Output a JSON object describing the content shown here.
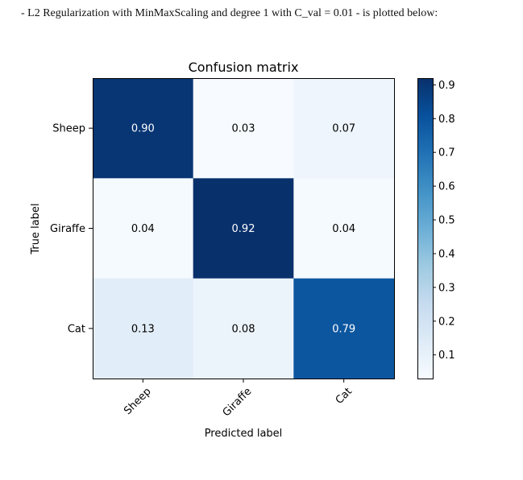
{
  "caption": "- L2 Regularization with MinMaxScaling and degree 1 with C_val = 0.01 - is plotted below:",
  "chart_data": {
    "type": "heatmap",
    "title": "Confusion matrix",
    "xlabel": "Predicted label",
    "ylabel": "True label",
    "x_categories": [
      "Sheep",
      "Giraffe",
      "Cat"
    ],
    "y_categories": [
      "Sheep",
      "Giraffe",
      "Cat"
    ],
    "values": [
      [
        0.9,
        0.03,
        0.07
      ],
      [
        0.04,
        0.92,
        0.04
      ],
      [
        0.13,
        0.08,
        0.79
      ]
    ],
    "cell_labels": [
      [
        "0.90",
        "0.03",
        "0.07"
      ],
      [
        "0.04",
        "0.92",
        "0.04"
      ],
      [
        "0.13",
        "0.08",
        "0.79"
      ]
    ],
    "colormap": "Blues",
    "colorbar": {
      "range": [
        0.03,
        0.92
      ],
      "ticks": [
        0.1,
        0.2,
        0.3,
        0.4,
        0.5,
        0.6,
        0.7,
        0.8,
        0.9
      ],
      "tick_labels": [
        "0.1",
        "0.2",
        "0.3",
        "0.4",
        "0.5",
        "0.6",
        "0.7",
        "0.8",
        "0.9"
      ]
    },
    "grid": false
  }
}
